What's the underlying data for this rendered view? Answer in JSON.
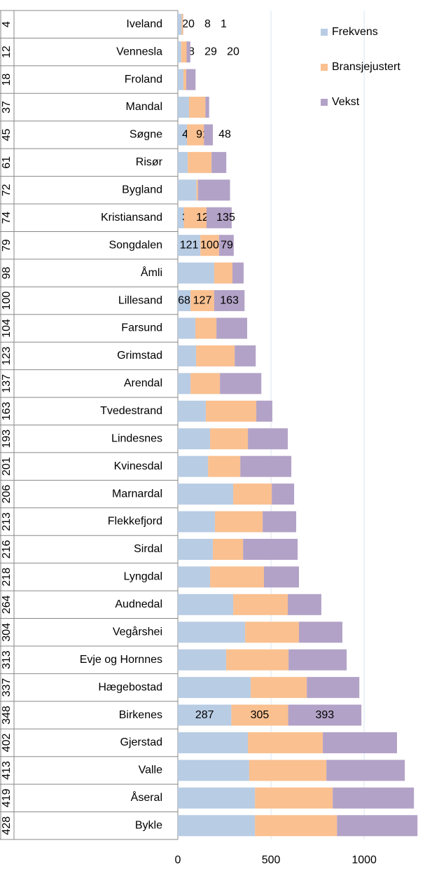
{
  "chart_data": {
    "type": "stacked-bar-horizontal",
    "ranks": [
      "4",
      "12",
      "18",
      "37",
      "45",
      "61",
      "72",
      "74",
      "79",
      "98",
      "100",
      "104",
      "123",
      "137",
      "163",
      "193",
      "201",
      "206",
      "213",
      "216",
      "218",
      "264",
      "304",
      "313",
      "337",
      "348",
      "402",
      "413",
      "419",
      "428"
    ],
    "categories": [
      "Iveland",
      "Vennesla",
      "Froland",
      "Mandal",
      "Søgne",
      "Risør",
      "Bygland",
      "Kristiansand",
      "Songdalen",
      "Åmli",
      "Lillesand",
      "Farsund",
      "Grimstad",
      "Arendal",
      "Tvedestrand",
      "Lindesnes",
      "Kvinesdal",
      "Marnardal",
      "Flekkefjord",
      "Sirdal",
      "Lyngdal",
      "Audnedal",
      "Vegårshei",
      "Evje og Hornnes",
      "Hægebostad",
      "Birkenes",
      "Gjerstad",
      "Valle",
      "Åseral",
      "Bykle"
    ],
    "series": [
      {
        "name": "Frekvens",
        "color": "#b8cce4",
        "values": [
          20,
          18,
          30,
          60,
          49,
          53,
          100,
          32,
          121,
          195,
          68,
          94,
          98,
          68,
          150,
          173,
          162,
          297,
          199,
          188,
          173,
          297,
          361,
          259,
          391,
          287,
          376,
          383,
          414,
          414
        ]
      },
      {
        "name": "Bransjejustert",
        "color": "#fac090",
        "values": [
          8,
          29,
          15,
          88,
          91,
          128,
          8,
          122,
          100,
          98,
          127,
          113,
          207,
          158,
          271,
          203,
          173,
          207,
          256,
          162,
          289,
          293,
          289,
          335,
          301,
          305,
          402,
          414,
          417,
          440
        ]
      },
      {
        "name": "Vekst",
        "color": "#b3a2c7",
        "values": [
          1,
          20,
          50,
          20,
          48,
          79,
          172,
          135,
          79,
          60,
          163,
          165,
          113,
          222,
          86,
          214,
          274,
          120,
          180,
          293,
          188,
          180,
          233,
          312,
          282,
          393,
          398,
          421,
          436,
          432
        ]
      }
    ],
    "labeled_categories": [
      0,
      1,
      4,
      7,
      8,
      10,
      25
    ],
    "xlim": [
      0,
      1300
    ],
    "xticks": [
      0,
      500,
      1000
    ],
    "grid": true,
    "legend": "top-right"
  }
}
